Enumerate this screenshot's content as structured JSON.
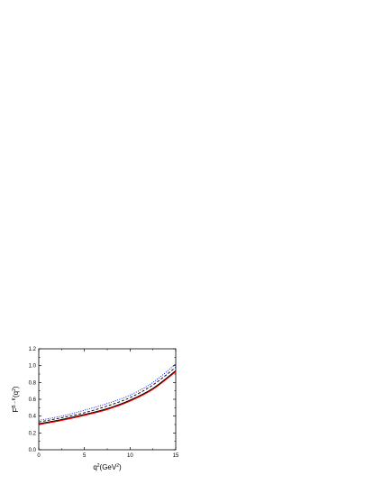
{
  "chart_data": {
    "type": "line",
    "x_axis": {
      "label_base": "q",
      "label_sup": "2",
      "label_unit_start": "(GeV",
      "label_unit_sup": "2",
      "label_unit_end": ")",
      "range": [
        0,
        15
      ],
      "ticks": [
        0,
        5,
        10,
        15
      ],
      "tick_labels": [
        "0",
        "5",
        "10",
        "15"
      ]
    },
    "y_axis": {
      "label_base": "F",
      "label_sup": "B→K",
      "label_arg_start": "(q",
      "label_arg_sup": "2",
      "label_arg_end": ")",
      "range": [
        0.0,
        1.2
      ],
      "ticks": [
        0.0,
        0.2,
        0.4,
        0.6,
        0.8,
        1.0,
        1.2
      ],
      "tick_labels": [
        "0.0",
        "0.2",
        "0.4",
        "0.6",
        "0.8",
        "1.0",
        "1.2"
      ]
    },
    "grid": false,
    "legend": "none",
    "series": [
      {
        "style": "solid",
        "color": "#ff0000",
        "x": [
          0,
          2.5,
          5,
          7.5,
          10,
          12.5,
          15
        ],
        "y": [
          0.3,
          0.35,
          0.41,
          0.48,
          0.58,
          0.72,
          0.93
        ]
      },
      {
        "style": "solid",
        "color": "#000000",
        "x": [
          0,
          2.5,
          5,
          7.5,
          10,
          12.5,
          15
        ],
        "y": [
          0.31,
          0.36,
          0.42,
          0.49,
          0.59,
          0.73,
          0.94
        ]
      },
      {
        "style": "dashed",
        "color": "#000000",
        "x": [
          0,
          2.5,
          5,
          7.5,
          10,
          12.5,
          15
        ],
        "y": [
          0.33,
          0.38,
          0.44,
          0.52,
          0.62,
          0.77,
          0.98
        ]
      },
      {
        "style": "dotted",
        "color": "#0000ff",
        "x": [
          0,
          2.5,
          5,
          7.5,
          10,
          12.5,
          15
        ],
        "y": [
          0.35,
          0.4,
          0.47,
          0.55,
          0.65,
          0.8,
          1.02
        ]
      }
    ]
  }
}
